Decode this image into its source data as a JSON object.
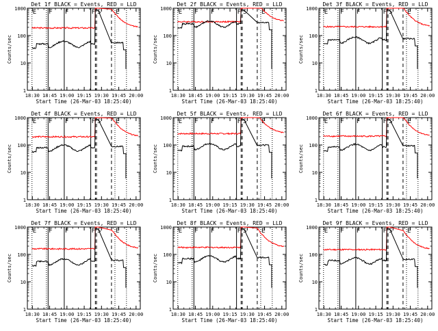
{
  "chart_data": {
    "type": "line",
    "layout": "3x3 grid",
    "shared": {
      "x_axis_label": "Start Time (26-Mar-03 18:25:40)",
      "y_axis_label": "Counts/sec",
      "x_tick_labels": [
        "18:30",
        "18:45",
        "19:00",
        "19:15",
        "19:30",
        "19:45",
        "20:00"
      ],
      "x_tick_values_min": [
        4.33,
        19.33,
        34.33,
        49.33,
        64.33,
        79.33,
        94.33
      ],
      "x_range_min": [
        0,
        98
      ],
      "y_scale": "log",
      "y_range": [
        1,
        1000
      ],
      "y_tick_labels": [
        "1",
        "10",
        "100",
        "1000"
      ],
      "series": [
        {
          "name": "Events",
          "color": "#000000"
        },
        {
          "name": "LLD",
          "color": "#ff0000"
        }
      ],
      "event_markers": [
        {
          "label": "E",
          "x_min": 4,
          "style": "dotted"
        },
        {
          "label": "F",
          "x_min": 18,
          "style": "solid"
        },
        {
          "label": "F",
          "x_min": 32,
          "style": "solid"
        },
        {
          "label": "F",
          "x_min": 55,
          "style": "solid"
        },
        {
          "label": "S",
          "x_min": 60,
          "style": "dashed"
        },
        {
          "label": "E",
          "x_min": 76,
          "style": "dotted"
        },
        {
          "label": "",
          "x_min": 59,
          "style": "dashed"
        },
        {
          "label": "",
          "x_min": 73,
          "style": "dashed"
        },
        {
          "label": "",
          "x_min": 86,
          "style": "dotted"
        },
        {
          "label": "",
          "x_min": 16.5,
          "style": "dotted"
        }
      ]
    },
    "panels": [
      {
        "title": "Det 1f BLACK = Events, RED = LLD",
        "events_level": 50,
        "lld_level": 190,
        "offset": 0
      },
      {
        "title": "Det 2f BLACK = Events, RED = LLD",
        "events_level": 270,
        "lld_level": 320,
        "offset": 1
      },
      {
        "title": "Det 3f BLACK = Events, RED = LLD",
        "events_level": 70,
        "lld_level": 210,
        "offset": 2
      },
      {
        "title": "Det 4f BLACK = Events, RED = LLD",
        "events_level": 80,
        "lld_level": 200,
        "offset": 3
      },
      {
        "title": "Det 5f BLACK = Events, RED = LLD",
        "events_level": 90,
        "lld_level": 260,
        "offset": 4
      },
      {
        "title": "Det 6f BLACK = Events, RED = LLD",
        "events_level": 85,
        "lld_level": 210,
        "offset": 5
      },
      {
        "title": "Det 7f BLACK = Events, RED = LLD",
        "events_level": 55,
        "lld_level": 160,
        "offset": 6
      },
      {
        "title": "Det 8f BLACK = Events, RED = LLD",
        "events_level": 70,
        "lld_level": 180,
        "offset": 7
      },
      {
        "title": "Det 9f BLACK = Events, RED = LLD",
        "events_level": 60,
        "lld_level": 150,
        "offset": 8
      }
    ]
  }
}
